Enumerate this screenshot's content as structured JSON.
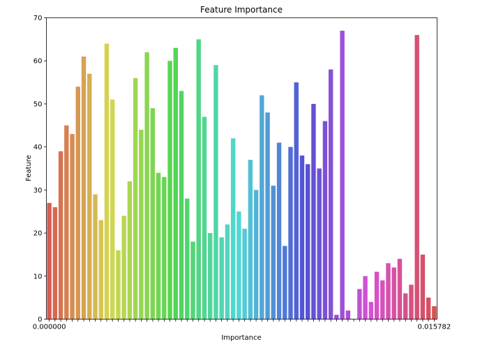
{
  "chart_data": {
    "type": "bar",
    "title": "Feature Importance",
    "xlabel": "Importance",
    "ylabel": "Feature",
    "ylim": [
      0,
      70
    ],
    "yticks": [
      "0",
      "10",
      "20",
      "30",
      "40",
      "50",
      "60",
      "70"
    ],
    "grid": false,
    "legend": "none",
    "first_x_tick": "0.000000",
    "last_x_tick": "0.015782",
    "values": [
      27,
      26,
      39,
      45,
      43,
      54,
      61,
      57,
      29,
      23,
      64,
      51,
      16,
      24,
      32,
      56,
      44,
      62,
      49,
      34,
      33,
      60,
      63,
      53,
      28,
      18,
      65,
      47,
      20,
      59,
      19,
      22,
      42,
      25,
      21,
      37,
      30,
      52,
      48,
      31,
      41,
      17,
      40,
      55,
      38,
      36,
      50,
      35,
      46,
      58,
      1,
      67,
      2,
      0,
      7,
      10,
      4,
      11,
      9,
      13,
      12,
      14,
      6,
      8,
      66,
      15,
      5,
      3
    ]
  }
}
